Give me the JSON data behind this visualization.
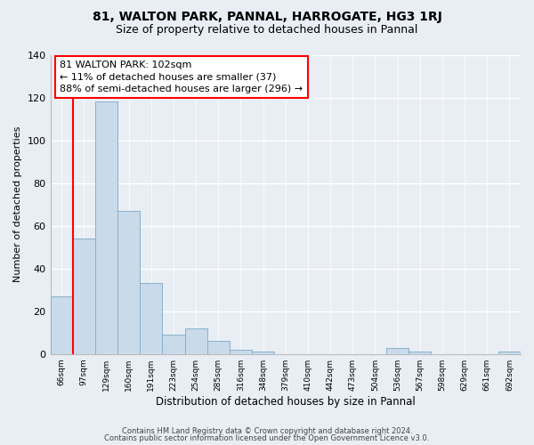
{
  "title1": "81, WALTON PARK, PANNAL, HARROGATE, HG3 1RJ",
  "title2": "Size of property relative to detached houses in Pannal",
  "xlabel": "Distribution of detached houses by size in Pannal",
  "ylabel": "Number of detached properties",
  "bar_color": "#c9daea",
  "bar_edgecolor": "#8ab0cc",
  "annotation_line1": "81 WALTON PARK: 102sqm",
  "annotation_line2": "← 11% of detached houses are smaller (37)",
  "annotation_line3": "88% of semi-detached houses are larger (296) →",
  "categories": [
    "66sqm",
    "97sqm",
    "129sqm",
    "160sqm",
    "191sqm",
    "223sqm",
    "254sqm",
    "285sqm",
    "316sqm",
    "348sqm",
    "379sqm",
    "410sqm",
    "442sqm",
    "473sqm",
    "504sqm",
    "536sqm",
    "567sqm",
    "598sqm",
    "629sqm",
    "661sqm",
    "692sqm"
  ],
  "values": [
    27,
    54,
    118,
    67,
    33,
    9,
    12,
    6,
    2,
    1,
    0,
    0,
    0,
    0,
    0,
    3,
    1,
    0,
    0,
    0,
    1
  ],
  "ylim": [
    0,
    140
  ],
  "yticks": [
    0,
    20,
    40,
    60,
    80,
    100,
    120,
    140
  ],
  "redline_index": 1,
  "footer1": "Contains HM Land Registry data © Crown copyright and database right 2024.",
  "footer2": "Contains public sector information licensed under the Open Government Licence v3.0.",
  "fig_facecolor": "#e8eef4",
  "ax_facecolor": "#e8eef4",
  "grid_color": "#ffffff"
}
